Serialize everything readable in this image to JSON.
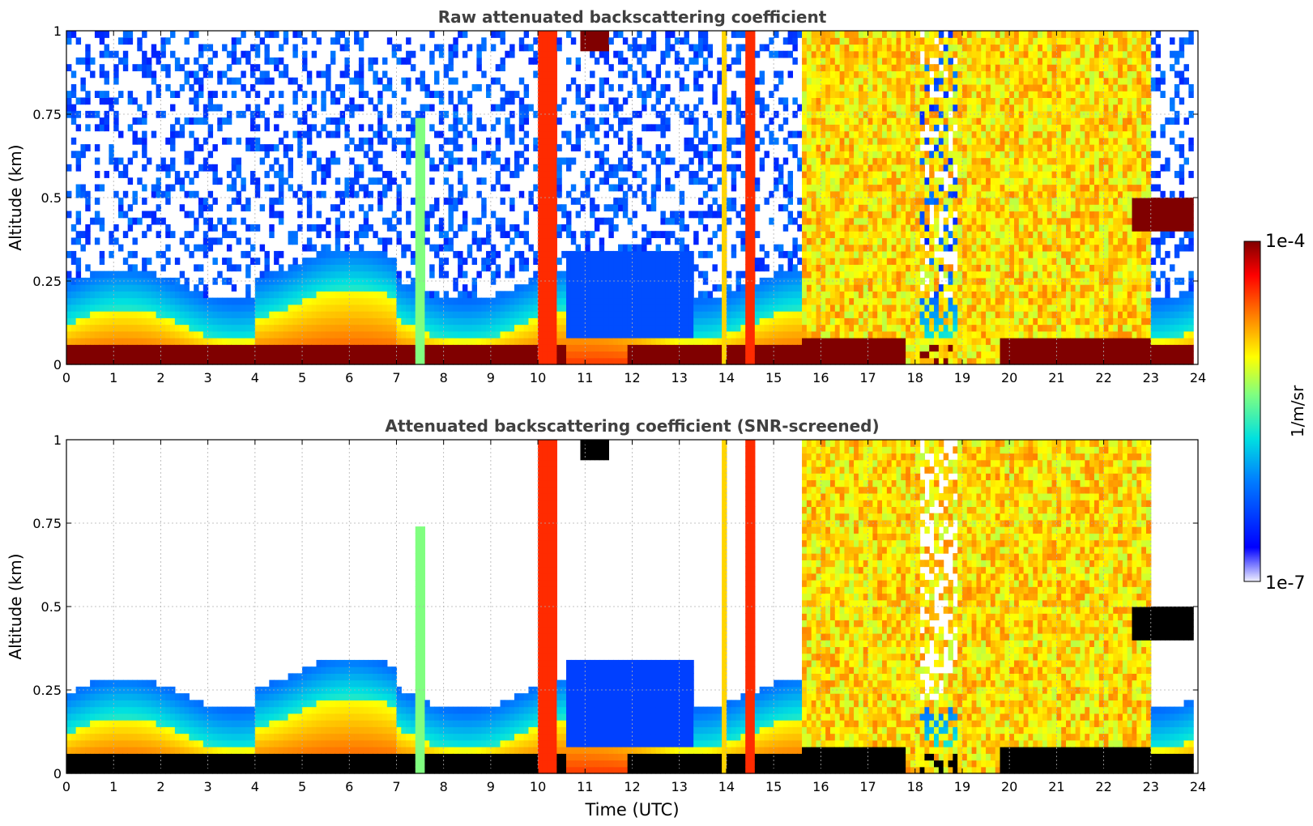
{
  "figure": {
    "colorbar": {
      "label": "1/m/sr",
      "max_label": "1e-4",
      "min_label": "1e-7",
      "range": [
        1e-07,
        0.0001
      ],
      "colormap": "jet"
    }
  },
  "chart_data": [
    {
      "type": "heatmap",
      "title": "Raw attenuated backscattering coefficient",
      "xlabel": "",
      "ylabel": "Altitude (km)",
      "xlim": [
        0,
        24
      ],
      "ylim": [
        0,
        1
      ],
      "x_ticks": [
        "0",
        "1",
        "2",
        "3",
        "4",
        "5",
        "6",
        "7",
        "8",
        "9",
        "10",
        "11",
        "12",
        "13",
        "14",
        "15",
        "16",
        "17",
        "18",
        "19",
        "20",
        "21",
        "22",
        "23",
        "24"
      ],
      "y_ticks": [
        "0",
        "0.25",
        "0.5",
        "0.75",
        "1"
      ],
      "y_tick_values": [
        0,
        0.25,
        0.5,
        0.75,
        1
      ],
      "grid": true,
      "screened": false
    },
    {
      "type": "heatmap",
      "title": "Attenuated backscattering coefficient (SNR-screened)",
      "xlabel": "Time (UTC)",
      "ylabel": "Altitude (km)",
      "xlim": [
        0,
        24
      ],
      "ylim": [
        0,
        1
      ],
      "x_ticks": [
        "0",
        "1",
        "2",
        "3",
        "4",
        "5",
        "6",
        "7",
        "8",
        "9",
        "10",
        "11",
        "12",
        "13",
        "14",
        "15",
        "16",
        "17",
        "18",
        "19",
        "20",
        "21",
        "22",
        "23",
        "24"
      ],
      "y_ticks": [
        "0",
        "0.25",
        "0.5",
        "0.75",
        "1"
      ],
      "y_tick_values": [
        0,
        0.25,
        0.5,
        0.75,
        1
      ],
      "grid": true,
      "screened": true
    }
  ]
}
